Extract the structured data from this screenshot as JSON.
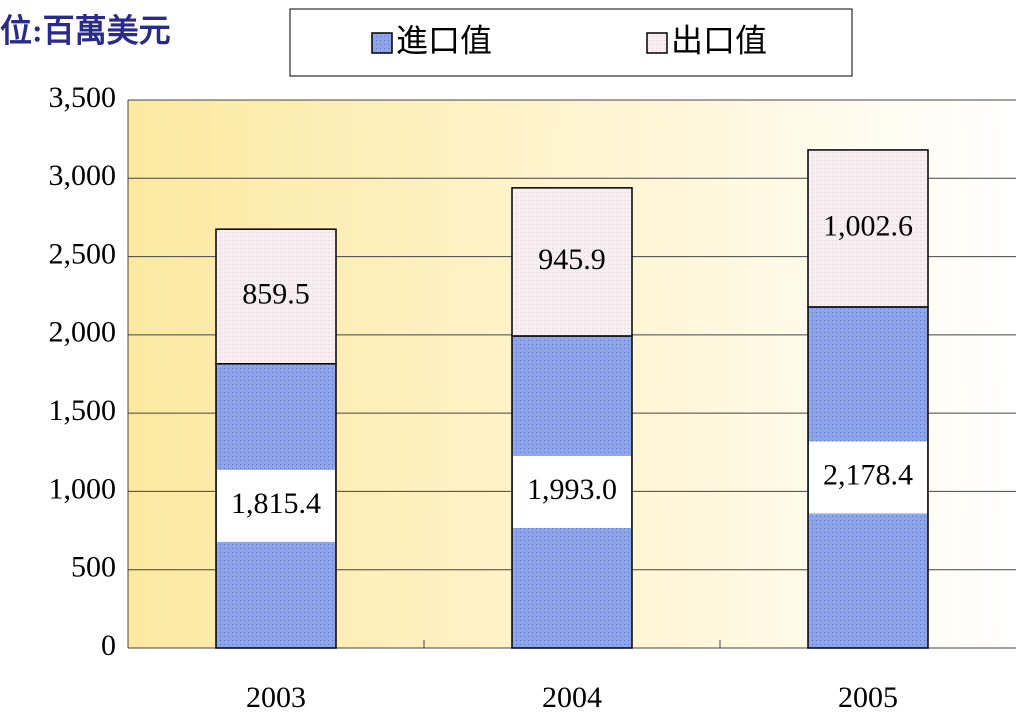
{
  "chart_data": {
    "type": "stacked_bar",
    "title": "位:百萬美元",
    "categories": [
      "2003",
      "2004",
      "2005"
    ],
    "series": [
      {
        "name": "進口值",
        "color": "#8ea6e6",
        "values": [
          1815.4,
          1993.0,
          2178.4
        ],
        "value_labels": [
          "1,815.4",
          "1,993.0",
          "2,178.4"
        ]
      },
      {
        "name": "出口值",
        "color": "#f6eef1",
        "values": [
          859.5,
          945.9,
          1002.6
        ],
        "value_labels": [
          "859.5",
          "945.9",
          "1,002.6"
        ]
      }
    ],
    "ylim": [
      0,
      3500
    ],
    "yticks": [
      0,
      500,
      {
        "value": 1000,
        "label": "1,000"
      },
      {
        "value": 1500,
        "label": "1,500"
      },
      {
        "value": 2000,
        "label": "2,000"
      },
      {
        "value": 2500,
        "label": "2,500"
      },
      {
        "value": 3000,
        "label": "3,000"
      },
      {
        "value": 3500,
        "label": "3,500"
      }
    ],
    "grid": true
  }
}
